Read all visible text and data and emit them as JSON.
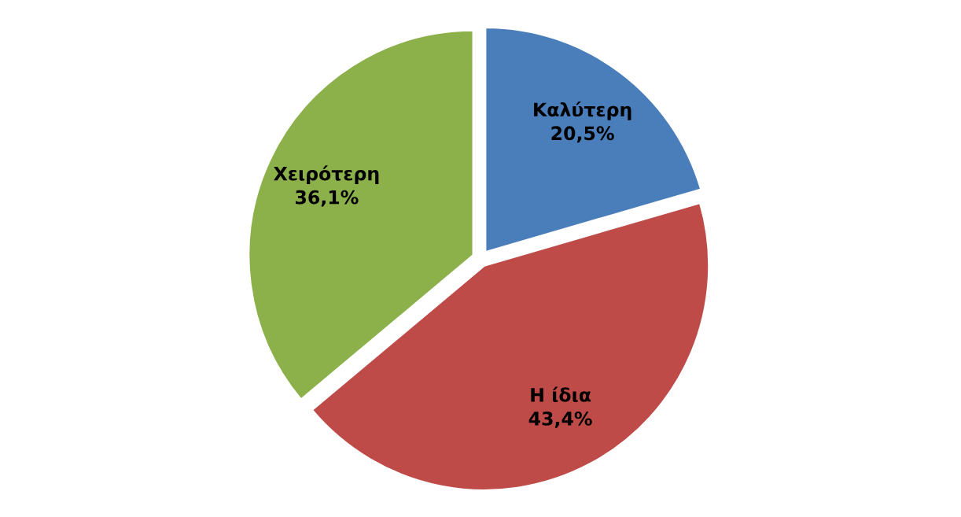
{
  "chart_data": {
    "type": "pie",
    "categories": [
      "Καλύτερη",
      "Η ίδια",
      "Χειρότερη"
    ],
    "values": [
      20.5,
      43.4,
      36.1
    ],
    "value_labels": [
      "20,5%",
      "43,4%",
      "36,1%"
    ],
    "colors": [
      "#4a7ebb",
      "#be4b48",
      "#8cb04a"
    ],
    "legend": false
  }
}
